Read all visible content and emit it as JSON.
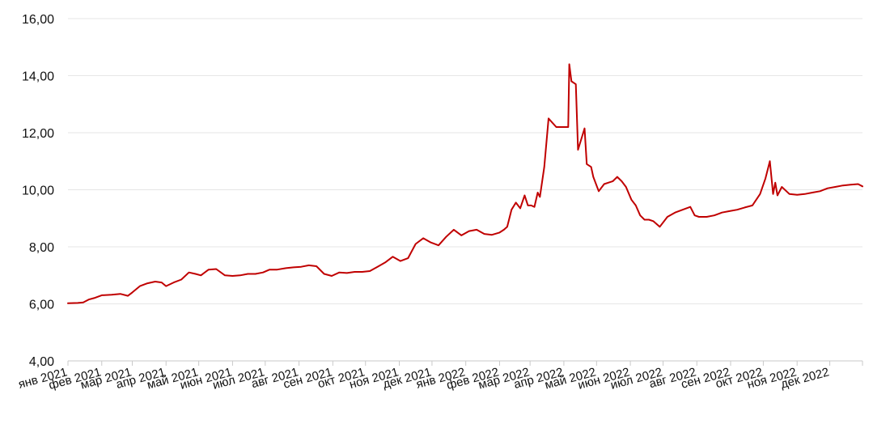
{
  "chart_data": {
    "type": "line",
    "title": "",
    "xlabel": "",
    "ylabel": "",
    "ylim": [
      4,
      16
    ],
    "yticks": [
      4,
      6,
      8,
      10,
      12,
      14,
      16
    ],
    "ytick_labels": [
      "4,00",
      "6,00",
      "8,00",
      "10,00",
      "12,00",
      "14,00",
      "16,00"
    ],
    "xtick_labels": [
      "янв 2021",
      "фев 2021",
      "мар 2021",
      "апр 2021",
      "май 2021",
      "июн 2021",
      "июл 2021",
      "авг 2021",
      "сен 2021",
      "окт 2021",
      "ноя 2021",
      "дек 2021",
      "янв 2022",
      "фев 2022",
      "мар 2022",
      "апр 2022",
      "май 2022",
      "июн 2022",
      "июл 2022",
      "авг 2022",
      "сен 2022",
      "окт 2022",
      "ноя 2022",
      "дек 2022"
    ],
    "grid": true,
    "line_color": "#c00000",
    "series": [
      {
        "x": [
          "2021-01-01",
          "2021-01-10",
          "2021-01-15",
          "2021-01-20",
          "2021-01-25",
          "2021-02-01",
          "2021-02-10",
          "2021-02-18",
          "2021-02-25",
          "2021-03-01",
          "2021-03-08",
          "2021-03-15",
          "2021-03-22",
          "2021-03-28",
          "2021-04-01",
          "2021-04-08",
          "2021-04-15",
          "2021-04-22",
          "2021-04-28",
          "2021-05-03",
          "2021-05-10",
          "2021-05-17",
          "2021-05-25",
          "2021-06-01",
          "2021-06-08",
          "2021-06-15",
          "2021-06-22",
          "2021-06-29",
          "2021-07-05",
          "2021-07-12",
          "2021-07-20",
          "2021-07-27",
          "2021-08-03",
          "2021-08-10",
          "2021-08-17",
          "2021-08-24",
          "2021-08-31",
          "2021-09-07",
          "2021-09-14",
          "2021-09-21",
          "2021-09-28",
          "2021-10-05",
          "2021-10-12",
          "2021-10-19",
          "2021-10-26",
          "2021-11-02",
          "2021-11-09",
          "2021-11-16",
          "2021-11-23",
          "2021-11-30",
          "2021-12-07",
          "2021-12-14",
          "2021-12-21",
          "2021-12-28",
          "2022-01-04",
          "2022-01-11",
          "2022-01-18",
          "2022-01-25",
          "2022-02-01",
          "2022-02-05",
          "2022-02-08",
          "2022-02-12",
          "2022-02-16",
          "2022-02-20",
          "2022-02-24",
          "2022-02-27",
          "2022-03-02",
          "2022-03-05",
          "2022-03-08",
          "2022-03-10",
          "2022-03-14",
          "2022-03-18",
          "2022-03-25",
          "2022-04-01",
          "2022-04-05",
          "2022-04-06",
          "2022-04-08",
          "2022-04-12",
          "2022-04-14",
          "2022-04-18",
          "2022-04-20",
          "2022-04-22",
          "2022-04-26",
          "2022-04-28",
          "2022-05-03",
          "2022-05-08",
          "2022-05-12",
          "2022-05-16",
          "2022-05-20",
          "2022-05-24",
          "2022-05-28",
          "2022-06-02",
          "2022-06-06",
          "2022-06-10",
          "2022-06-14",
          "2022-06-18",
          "2022-06-22",
          "2022-06-28",
          "2022-07-05",
          "2022-07-12",
          "2022-07-19",
          "2022-07-26",
          "2022-07-30",
          "2022-08-03",
          "2022-08-10",
          "2022-08-17",
          "2022-08-24",
          "2022-08-31",
          "2022-09-07",
          "2022-09-14",
          "2022-09-21",
          "2022-09-28",
          "2022-10-03",
          "2022-10-07",
          "2022-10-10",
          "2022-10-12",
          "2022-10-14",
          "2022-10-18",
          "2022-10-25",
          "2022-11-01",
          "2022-11-08",
          "2022-11-15",
          "2022-11-22",
          "2022-11-29",
          "2022-12-06",
          "2022-12-13",
          "2022-12-20",
          "2022-12-27",
          "2022-12-31"
        ],
        "y": [
          6.02,
          6.03,
          6.05,
          6.15,
          6.2,
          6.3,
          6.32,
          6.35,
          6.28,
          6.4,
          6.62,
          6.72,
          6.78,
          6.75,
          6.62,
          6.75,
          6.85,
          7.1,
          7.05,
          7.0,
          7.2,
          7.22,
          7.0,
          6.98,
          7.0,
          7.05,
          7.05,
          7.1,
          7.2,
          7.2,
          7.25,
          7.28,
          7.3,
          7.35,
          7.32,
          7.05,
          6.98,
          7.1,
          7.08,
          7.12,
          7.12,
          7.15,
          7.3,
          7.45,
          7.65,
          7.5,
          7.6,
          8.1,
          8.3,
          8.15,
          8.05,
          8.35,
          8.6,
          8.4,
          8.55,
          8.6,
          8.45,
          8.42,
          8.5,
          8.6,
          8.7,
          9.3,
          9.55,
          9.35,
          9.8,
          9.45,
          9.45,
          9.4,
          9.9,
          9.75,
          10.8,
          12.5,
          12.2,
          12.2,
          12.2,
          14.4,
          13.8,
          13.7,
          11.4,
          11.9,
          12.15,
          10.9,
          10.8,
          10.45,
          9.95,
          10.2,
          10.25,
          10.3,
          10.45,
          10.3,
          10.1,
          9.65,
          9.45,
          9.1,
          8.95,
          8.95,
          8.9,
          8.7,
          9.05,
          9.2,
          9.3,
          9.4,
          9.1,
          9.05,
          9.05,
          9.1,
          9.2,
          9.25,
          9.3,
          9.38,
          9.45,
          9.85,
          10.4,
          11.0,
          9.85,
          10.25,
          9.8,
          10.1,
          9.85,
          9.82,
          9.85,
          9.9,
          9.95,
          10.05,
          10.1,
          10.15,
          10.18,
          10.2,
          10.12
        ]
      }
    ]
  }
}
